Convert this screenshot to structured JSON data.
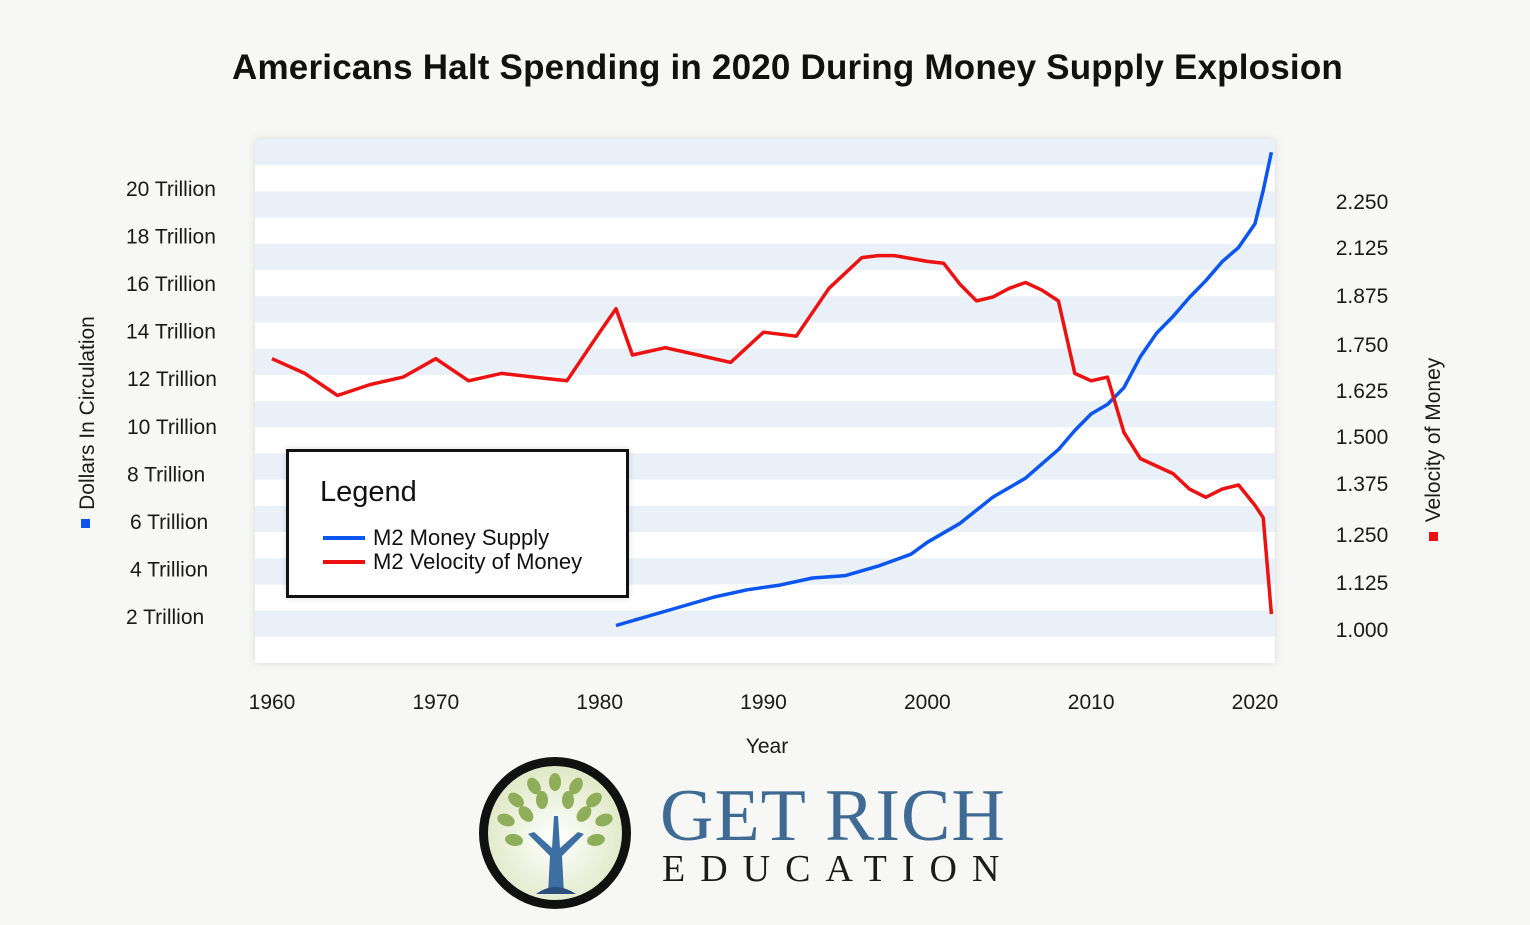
{
  "chart_data": {
    "type": "line",
    "title": "Americans Halt Spending in 2020 During Money Supply Explosion",
    "xlabel": "Year",
    "ylabel_left": "Dollars In Circulation",
    "ylabel_right": "Velocity of Money",
    "x_ticks": [
      "1960",
      "1970",
      "1980",
      "1990",
      "2000",
      "2010",
      "2020"
    ],
    "y_left_ticks": [
      "2 Trillion",
      "4 Trillion",
      "6 Trillion",
      "8 Trillion",
      "10 Trillion",
      "12 Trillion",
      "14 Trillion",
      "16 Trillion",
      "18 Trillion",
      "20 Trillion"
    ],
    "y_right_ticks": [
      "1.000",
      "1.125",
      "1.250",
      "1.375",
      "1.500",
      "1.625",
      "1.750",
      "1.875",
      "2.125",
      "2.250"
    ],
    "legend": {
      "title": "Legend",
      "placement": "bottom-left",
      "entries": [
        "M2 Money Supply",
        "M2 Velocity of Money"
      ]
    },
    "colors": {
      "m2": "#0b55f0",
      "velocity": "#ee1111"
    },
    "series": [
      {
        "name": "M2 Money Supply",
        "axis": "left",
        "x": [
          1981,
          1983,
          1985,
          1987,
          1989,
          1991,
          1993,
          1995,
          1997,
          1999,
          2000,
          2002,
          2004,
          2006,
          2008,
          2009,
          2010,
          2011,
          2012,
          2013,
          2014,
          2015,
          2016,
          2017,
          2018,
          2019,
          2020,
          2020.5,
          2021
        ],
        "values": [
          1.6,
          2.0,
          2.4,
          2.8,
          3.1,
          3.3,
          3.6,
          3.7,
          4.1,
          4.6,
          5.1,
          5.9,
          7.0,
          7.8,
          9.0,
          9.8,
          10.5,
          10.9,
          11.6,
          12.9,
          13.9,
          14.6,
          15.4,
          16.1,
          16.9,
          17.5,
          18.5,
          19.9,
          21.5
        ]
      },
      {
        "name": "M2 Velocity of Money",
        "axis": "right",
        "x": [
          1960,
          1962,
          1964,
          1966,
          1968,
          1970,
          1972,
          1974,
          1976,
          1978,
          1980,
          1981,
          1982,
          1984,
          1986,
          1988,
          1990,
          1992,
          1994,
          1996,
          1997,
          1998,
          2000,
          2001,
          2002,
          2003,
          2004,
          2005,
          2006,
          2007,
          2008,
          2009,
          2010,
          2011,
          2012,
          2013,
          2014,
          2015,
          2016,
          2017,
          2018,
          2019,
          2020,
          2020.5,
          2021
        ],
        "values": [
          1.71,
          1.67,
          1.61,
          1.64,
          1.66,
          1.71,
          1.65,
          1.67,
          1.66,
          1.65,
          1.78,
          1.84,
          1.72,
          1.74,
          1.72,
          1.7,
          1.78,
          1.77,
          1.91,
          2.07,
          2.08,
          2.08,
          2.05,
          2.04,
          1.93,
          1.86,
          1.87,
          1.91,
          1.94,
          1.9,
          1.86,
          1.67,
          1.65,
          1.66,
          1.51,
          1.44,
          1.42,
          1.4,
          1.36,
          1.34,
          1.36,
          1.37,
          1.32,
          1.29,
          1.04
        ]
      }
    ]
  },
  "logo": {
    "line1": "GET RICH",
    "line2": "EDUCATION",
    "icon": "money-tree-icon"
  }
}
